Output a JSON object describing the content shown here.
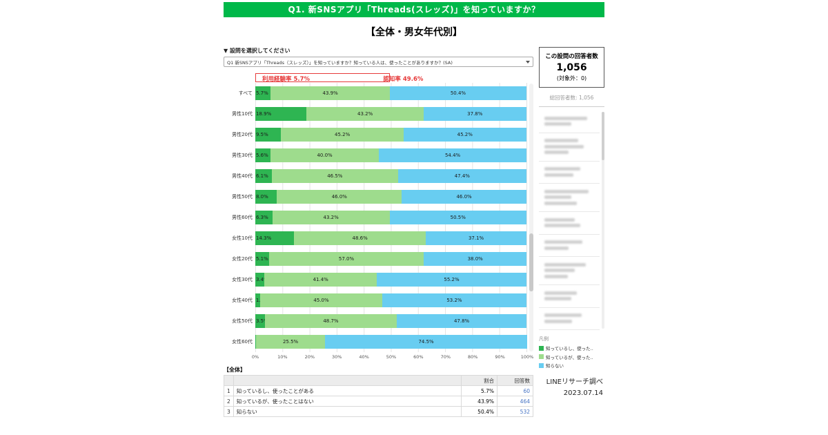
{
  "header": {
    "title": "Q1. 新SNSアプリ「Threads(スレッズ)」を知っていますか？",
    "background": "#00b849",
    "text_color": "#ffffff"
  },
  "subtitle": "【全体・男女年代別】",
  "question_selector": {
    "label": "▼ 設問を選択してください",
    "selected_option": "Q1 新SNSアプリ「Threads（スレッズ）」を知っていますか？知っている人は、使ったことがありますか？(SA)"
  },
  "annotations": {
    "usage_text": "利用経験率 5.7%",
    "awareness_text": "認知率 49.6%",
    "awareness_span_pct": 49.6,
    "color": "#e63939"
  },
  "chart_data": {
    "type": "bar",
    "stacked": true,
    "orientation": "horizontal",
    "title": "",
    "xlabel": "",
    "ylabel": "",
    "xlim": [
      0,
      100
    ],
    "x_ticks": [
      "0%",
      "10%",
      "20%",
      "30%",
      "40%",
      "50%",
      "60%",
      "70%",
      "80%",
      "90%",
      "100%"
    ],
    "categories": [
      "すべて",
      "男性10代",
      "男性20代",
      "男性30代",
      "男性40代",
      "男性50代",
      "男性60代",
      "女性10代",
      "女性20代",
      "女性30代",
      "女性40代",
      "女性50代",
      "女性60代"
    ],
    "series": [
      {
        "name": "知っているし、使った..",
        "color": "#2eb552",
        "values": [
          5.7,
          18.9,
          9.5,
          5.6,
          6.1,
          8.0,
          6.3,
          14.3,
          5.1,
          3.4,
          1.8,
          3.5,
          0.0
        ]
      },
      {
        "name": "知っているが、使った..",
        "color": "#9edc8d",
        "values": [
          43.9,
          43.2,
          45.2,
          40.0,
          46.5,
          46.0,
          43.2,
          48.6,
          57.0,
          41.4,
          45.0,
          48.7,
          25.5
        ]
      },
      {
        "name": "知らない",
        "color": "#68cdf1",
        "values": [
          50.4,
          37.8,
          45.2,
          54.4,
          47.4,
          46.0,
          50.5,
          37.1,
          38.0,
          55.2,
          53.2,
          47.8,
          74.5
        ]
      }
    ]
  },
  "summary_table": {
    "title": "【全体】",
    "columns": [
      "割合",
      "回答数"
    ],
    "rows": [
      {
        "no": "1",
        "label": "知っているし、使ったことがある",
        "ratio": "5.7%",
        "count": "60"
      },
      {
        "no": "2",
        "label": "知っているが、使ったことはない",
        "ratio": "43.9%",
        "count": "464"
      },
      {
        "no": "3",
        "label": "知らない",
        "ratio": "50.4%",
        "count": "532"
      }
    ]
  },
  "respondents_panel": {
    "title": "この設問の回答者数",
    "count": "1,056",
    "excluded": "(対象外：0)",
    "total_label": "総回答者数:",
    "total_value": "1,056"
  },
  "legend": {
    "title": "凡例"
  },
  "footer": {
    "credit": "LINEリサーチ調べ",
    "date": "2023.07.14"
  }
}
